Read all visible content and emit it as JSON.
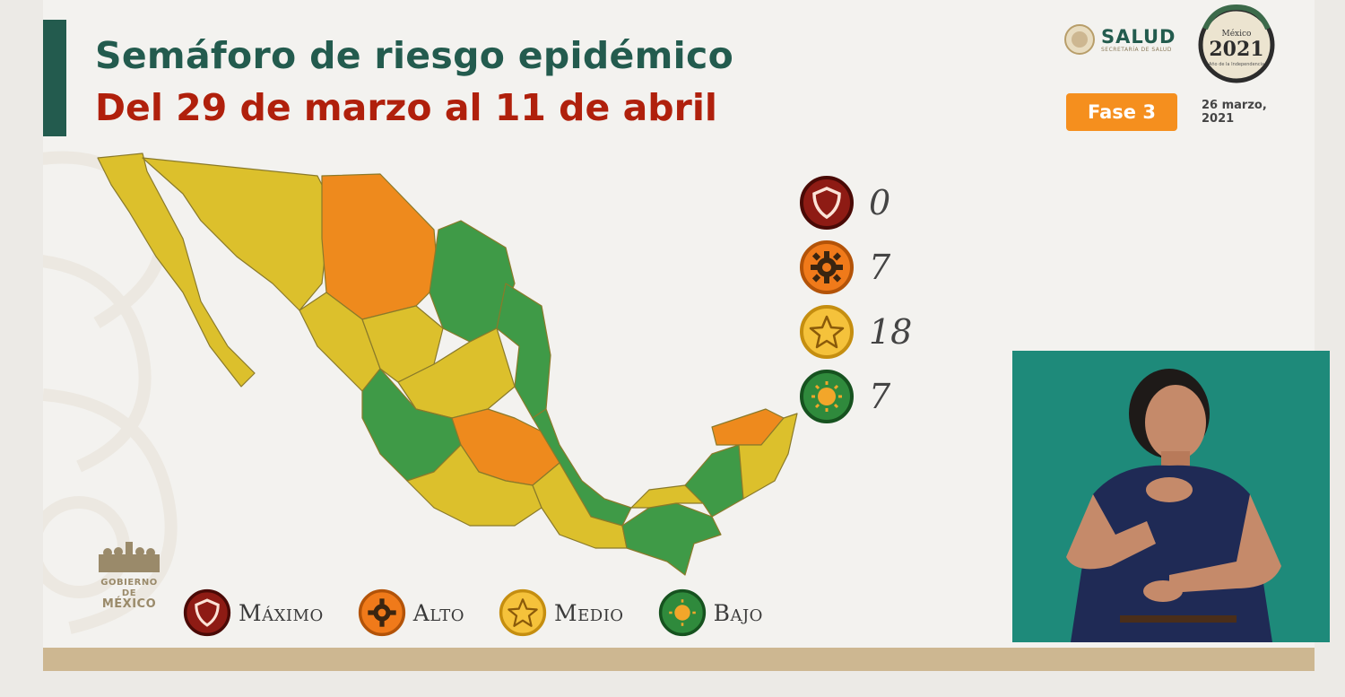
{
  "header": {
    "title": "Semáforo de riesgo epidémico",
    "subtitle": "Del 29 de marzo al 11 de abril"
  },
  "branding": {
    "salud": "SALUD",
    "salud_sub": "SECRETARÍA DE SALUD",
    "badge_year": "2021",
    "badge_top": "México",
    "badge_sub": "Año de la Independencia",
    "gov_line1": "GOBIERNO DE",
    "gov_line2": "MÉXICO"
  },
  "phase": {
    "label": "Fase 3"
  },
  "report_date": "26 marzo, 2021",
  "counts": [
    {
      "level": "maximo",
      "value": "0",
      "color": "#8e1b14",
      "icon": "shield-icon"
    },
    {
      "level": "alto",
      "value": "7",
      "color": "#f07a1a",
      "icon": "gear-icon"
    },
    {
      "level": "medio",
      "value": "18",
      "color": "#f5c23b",
      "icon": "star-icon"
    },
    {
      "level": "bajo",
      "value": "7",
      "color": "#2f8a3c",
      "icon": "sun-icon"
    }
  ],
  "legend": [
    {
      "label": "Máximo",
      "color": "#8e1b14",
      "icon": "shield-icon"
    },
    {
      "label": "Alto",
      "color": "#f07a1a",
      "icon": "gear-icon"
    },
    {
      "label": "Medio",
      "color": "#f5c23b",
      "icon": "star-icon"
    },
    {
      "label": "Bajo",
      "color": "#2f8a3c",
      "icon": "sun-icon"
    }
  ],
  "colors": {
    "primary_green": "#235b4e",
    "subtitle_red": "#b0200c",
    "phase_orange": "#f58f1e",
    "map_yellow": "#dcc02c",
    "map_orange": "#ee8a1d",
    "map_green": "#3f9a47"
  }
}
